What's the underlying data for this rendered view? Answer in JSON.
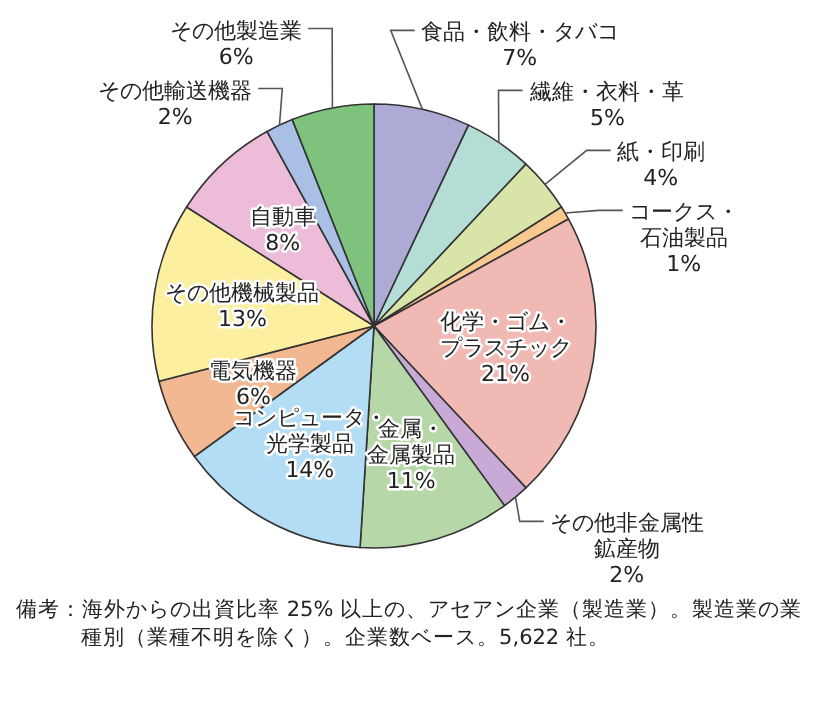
{
  "chart_data": {
    "type": "pie",
    "legend": false,
    "categories": [
      "食品・飲料・タバコ",
      "繊維・衣料・革",
      "紙・印刷",
      "コークス・石油製品",
      "化学・ゴム・プラスチック",
      "その他非金属性鉱産物",
      "金属・金属製品",
      "コンピュータ・光学製品",
      "電気機器",
      "その他機械製品",
      "自動車",
      "その他輸送機器",
      "その他製造業"
    ],
    "values": [
      7,
      5,
      4,
      1,
      21,
      2,
      11,
      14,
      6,
      13,
      8,
      2,
      6
    ],
    "value_labels": [
      "7%",
      "5%",
      "4%",
      "1%",
      "21%",
      "2%",
      "11%",
      "14%",
      "6%",
      "13%",
      "8%",
      "2%",
      "6%"
    ],
    "colors": [
      "#aeaad6",
      "#b4ddd6",
      "#d9e5a8",
      "#f7c98f",
      "#f0b9b3",
      "#c9aad6",
      "#b6d8a8",
      "#b3dcf5",
      "#f2b892",
      "#fcef9f",
      "#ecbcd9",
      "#a9bfe4",
      "#7ec27e"
    ],
    "annotations": [
      "備考：海外からの出資比率 25% 以上の、アセアン企業（製造業）。製造業の業種別（業種不明を除く）。企業数ベース。5,622 社。"
    ]
  }
}
